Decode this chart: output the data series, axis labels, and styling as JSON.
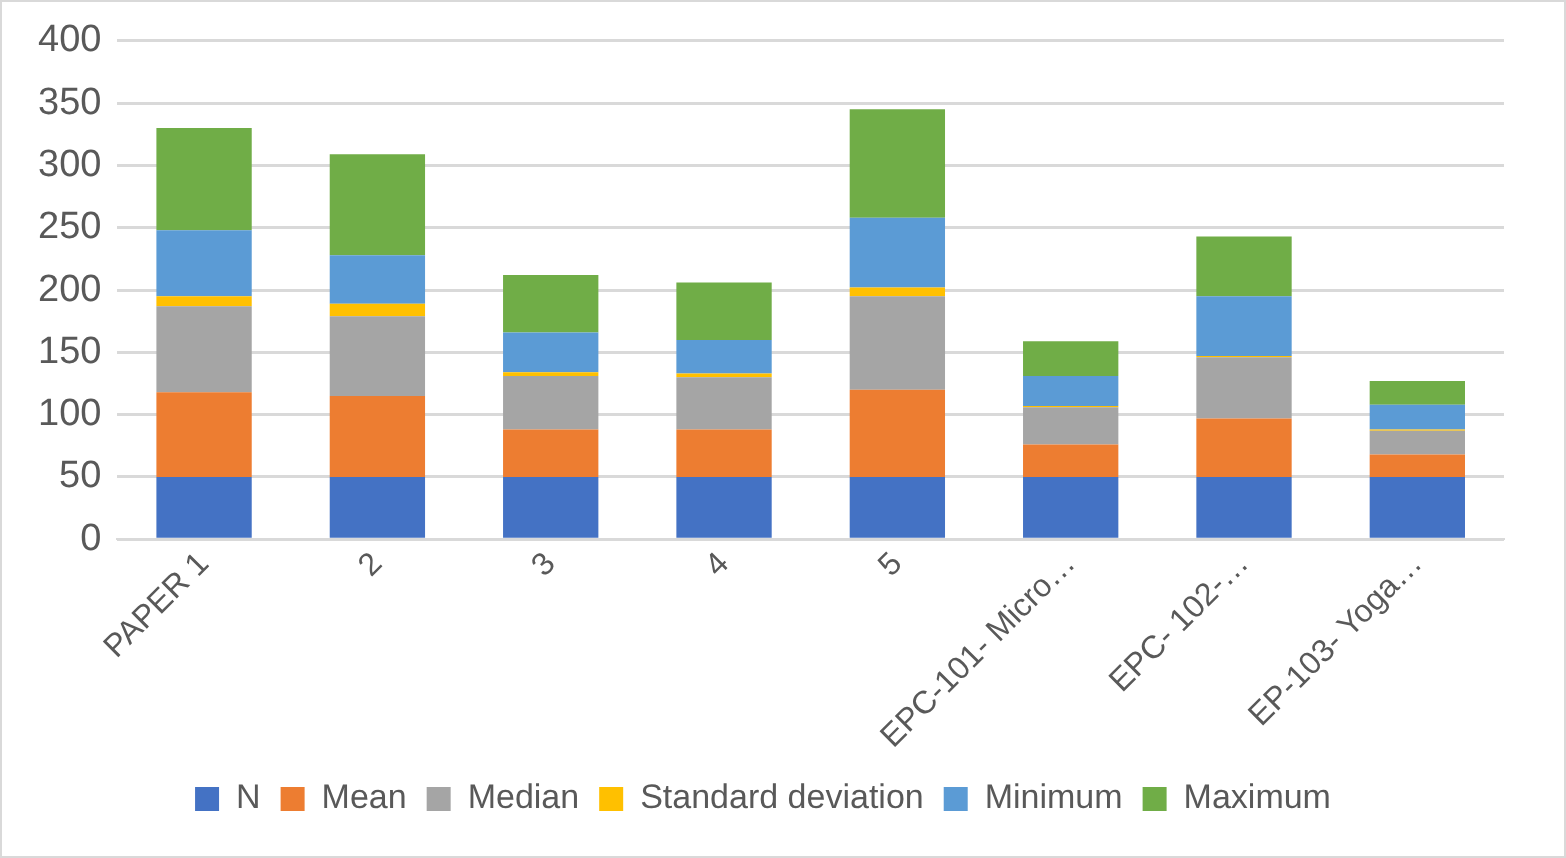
{
  "chart_data": {
    "type": "bar",
    "stacked": true,
    "categories": [
      "PAPER 1",
      "2",
      "3",
      "4",
      "5",
      "EPC-101- Micro…",
      "EPC- 102-…",
      "EP-103- Yoga…"
    ],
    "series": [
      {
        "name": "N",
        "color": "#4472c4",
        "values": [
          50,
          50,
          50,
          50,
          50,
          50,
          50,
          50
        ]
      },
      {
        "name": "Mean",
        "color": "#ed7d31",
        "values": [
          68,
          65,
          38,
          38,
          70,
          26,
          47,
          18
        ]
      },
      {
        "name": "Median",
        "color": "#a5a5a5",
        "values": [
          69,
          64,
          43,
          42,
          75,
          30,
          49,
          19
        ]
      },
      {
        "name": "Standard deviation",
        "color": "#ffc000",
        "values": [
          8,
          10,
          3,
          3,
          7,
          1,
          1,
          1
        ]
      },
      {
        "name": "Minimum",
        "color": "#5b9bd5",
        "values": [
          53,
          39,
          32,
          27,
          56,
          24,
          48,
          20
        ]
      },
      {
        "name": "Maximum",
        "color": "#70ad47",
        "values": [
          82,
          81,
          46,
          46,
          87,
          28,
          48,
          19
        ]
      }
    ],
    "ylim": [
      0,
      400
    ],
    "yticks": [
      0,
      50,
      100,
      150,
      200,
      250,
      300,
      350,
      400
    ],
    "grid": "y",
    "legend": "bottom"
  }
}
